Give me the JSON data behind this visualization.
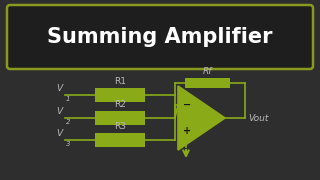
{
  "bg_color": "#2e2e2e",
  "title_text": "Summing Amplifier",
  "title_box_bg": "#1e1e1e",
  "title_border_color": "#8a9a20",
  "title_text_color": "#ffffff",
  "circuit_color": "#8aaa18",
  "label_color": "#bbbbbb",
  "opamp_fill": "#8aaa18",
  "resistor_labels": [
    "R1",
    "R2",
    "R3"
  ],
  "input_labels": [
    "V1",
    "V2",
    "V3"
  ],
  "feedback_label": "Rf",
  "output_label": "Vout",
  "title_fontsize": 15,
  "label_fontsize": 6.5
}
